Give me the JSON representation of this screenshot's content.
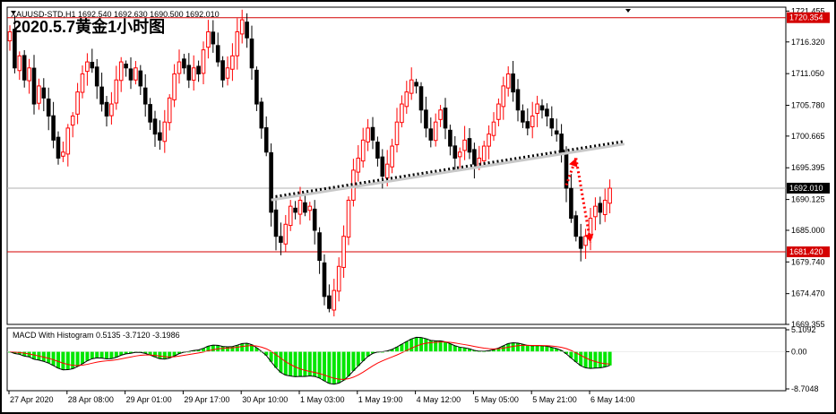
{
  "header": {
    "symbol_info": "XAUUSD-STD,H1  1692.540 1692.630 1690.500 1692.010",
    "overlay_title": "2020.5.7黄金1小时图"
  },
  "macd": {
    "label": "MACD With Histogram 0.5135 -3.7120 -3.1986",
    "y_ticks": [
      "5.1092",
      "0.00",
      "-8.7048"
    ]
  },
  "colors": {
    "bull": "#ff0000",
    "bear": "#000000",
    "level_line": "#d40000",
    "histogram": "#00e600",
    "macd_line": "#000000",
    "signal_line": "#ff0000",
    "trendline": "#000000",
    "arrow": "#ff0000",
    "price_tag_bg": "#d40000",
    "current_tag_bg": "#000000"
  },
  "chart_data": [
    {
      "type": "candlestick",
      "instrument": "XAUUSD",
      "timeframe": "H1",
      "ylim": [
        1669.355,
        1722.1
      ],
      "y_ticks": [
        "1721.455",
        "1716.320",
        "1711.050",
        "1705.780",
        "1700.665",
        "1695.395",
        "1690.125",
        "1685.000",
        "1679.740",
        "1674.470",
        "1669.355"
      ],
      "x_ticks": [
        "27 Apr 2020",
        "28 Apr 08:00",
        "29 Apr 01:00",
        "29 Apr 17:00",
        "30 Apr 10:00",
        "1 May 03:00",
        "1 May 19:00",
        "4 May 12:00",
        "5 May 05:00",
        "5 May 21:00",
        "6 May 14:00"
      ],
      "close_path": [
        1718,
        1712,
        1714,
        1710,
        1712,
        1706,
        1709,
        1707,
        1704,
        1700,
        1697,
        1698,
        1702,
        1704,
        1708,
        1711,
        1713,
        1712,
        1709,
        1706,
        1704,
        1706,
        1710,
        1713,
        1712,
        1710,
        1712,
        1709,
        1706,
        1703,
        1701,
        1700,
        1703,
        1707,
        1711,
        1713,
        1712,
        1710,
        1712,
        1711,
        1715,
        1718,
        1716,
        1713,
        1710,
        1712,
        1714,
        1718,
        1720,
        1717,
        1712,
        1706,
        1702,
        1698,
        1688,
        1684,
        1683,
        1686,
        1689,
        1688,
        1690,
        1688,
        1689,
        1685,
        1680,
        1674,
        1672,
        1675,
        1679,
        1684,
        1690,
        1695,
        1697,
        1700,
        1702,
        1700,
        1697,
        1694,
        1696,
        1699,
        1703,
        1706,
        1708,
        1710,
        1709,
        1705,
        1702,
        1700,
        1703,
        1705,
        1702,
        1699,
        1697,
        1698,
        1700,
        1698,
        1696,
        1697,
        1699,
        1701,
        1703,
        1706,
        1709,
        1711,
        1708,
        1705,
        1703,
        1702,
        1704,
        1706,
        1705,
        1704,
        1702,
        1701,
        1698,
        1692,
        1687,
        1684,
        1682,
        1684,
        1687,
        1689,
        1688,
        1690,
        1692
      ],
      "horizontal_levels": [
        {
          "price": 1720.354,
          "label": "1720.354"
        },
        {
          "price": 1681.42,
          "label": "1681.420"
        }
      ],
      "current_price": {
        "price": 1692.01,
        "label": "1692.010"
      },
      "trendline": {
        "from": {
          "bar": 54,
          "price": 1690.5
        },
        "to": {
          "bar": 127,
          "price": 1699.8
        }
      },
      "projection_arrows": [
        {
          "from": {
            "bar": 115,
            "price": 1692.5
          },
          "to": {
            "bar": 117,
            "price": 1697.0
          }
        },
        {
          "from": {
            "bar": 117,
            "price": 1697.0
          },
          "to": {
            "bar": 120,
            "price": 1683.0
          }
        }
      ]
    },
    {
      "type": "macd",
      "params_text": "MACD With Histogram 0.5135 -3.7120 -3.1986",
      "ylim": [
        -8.7048,
        5.1092
      ]
    }
  ]
}
